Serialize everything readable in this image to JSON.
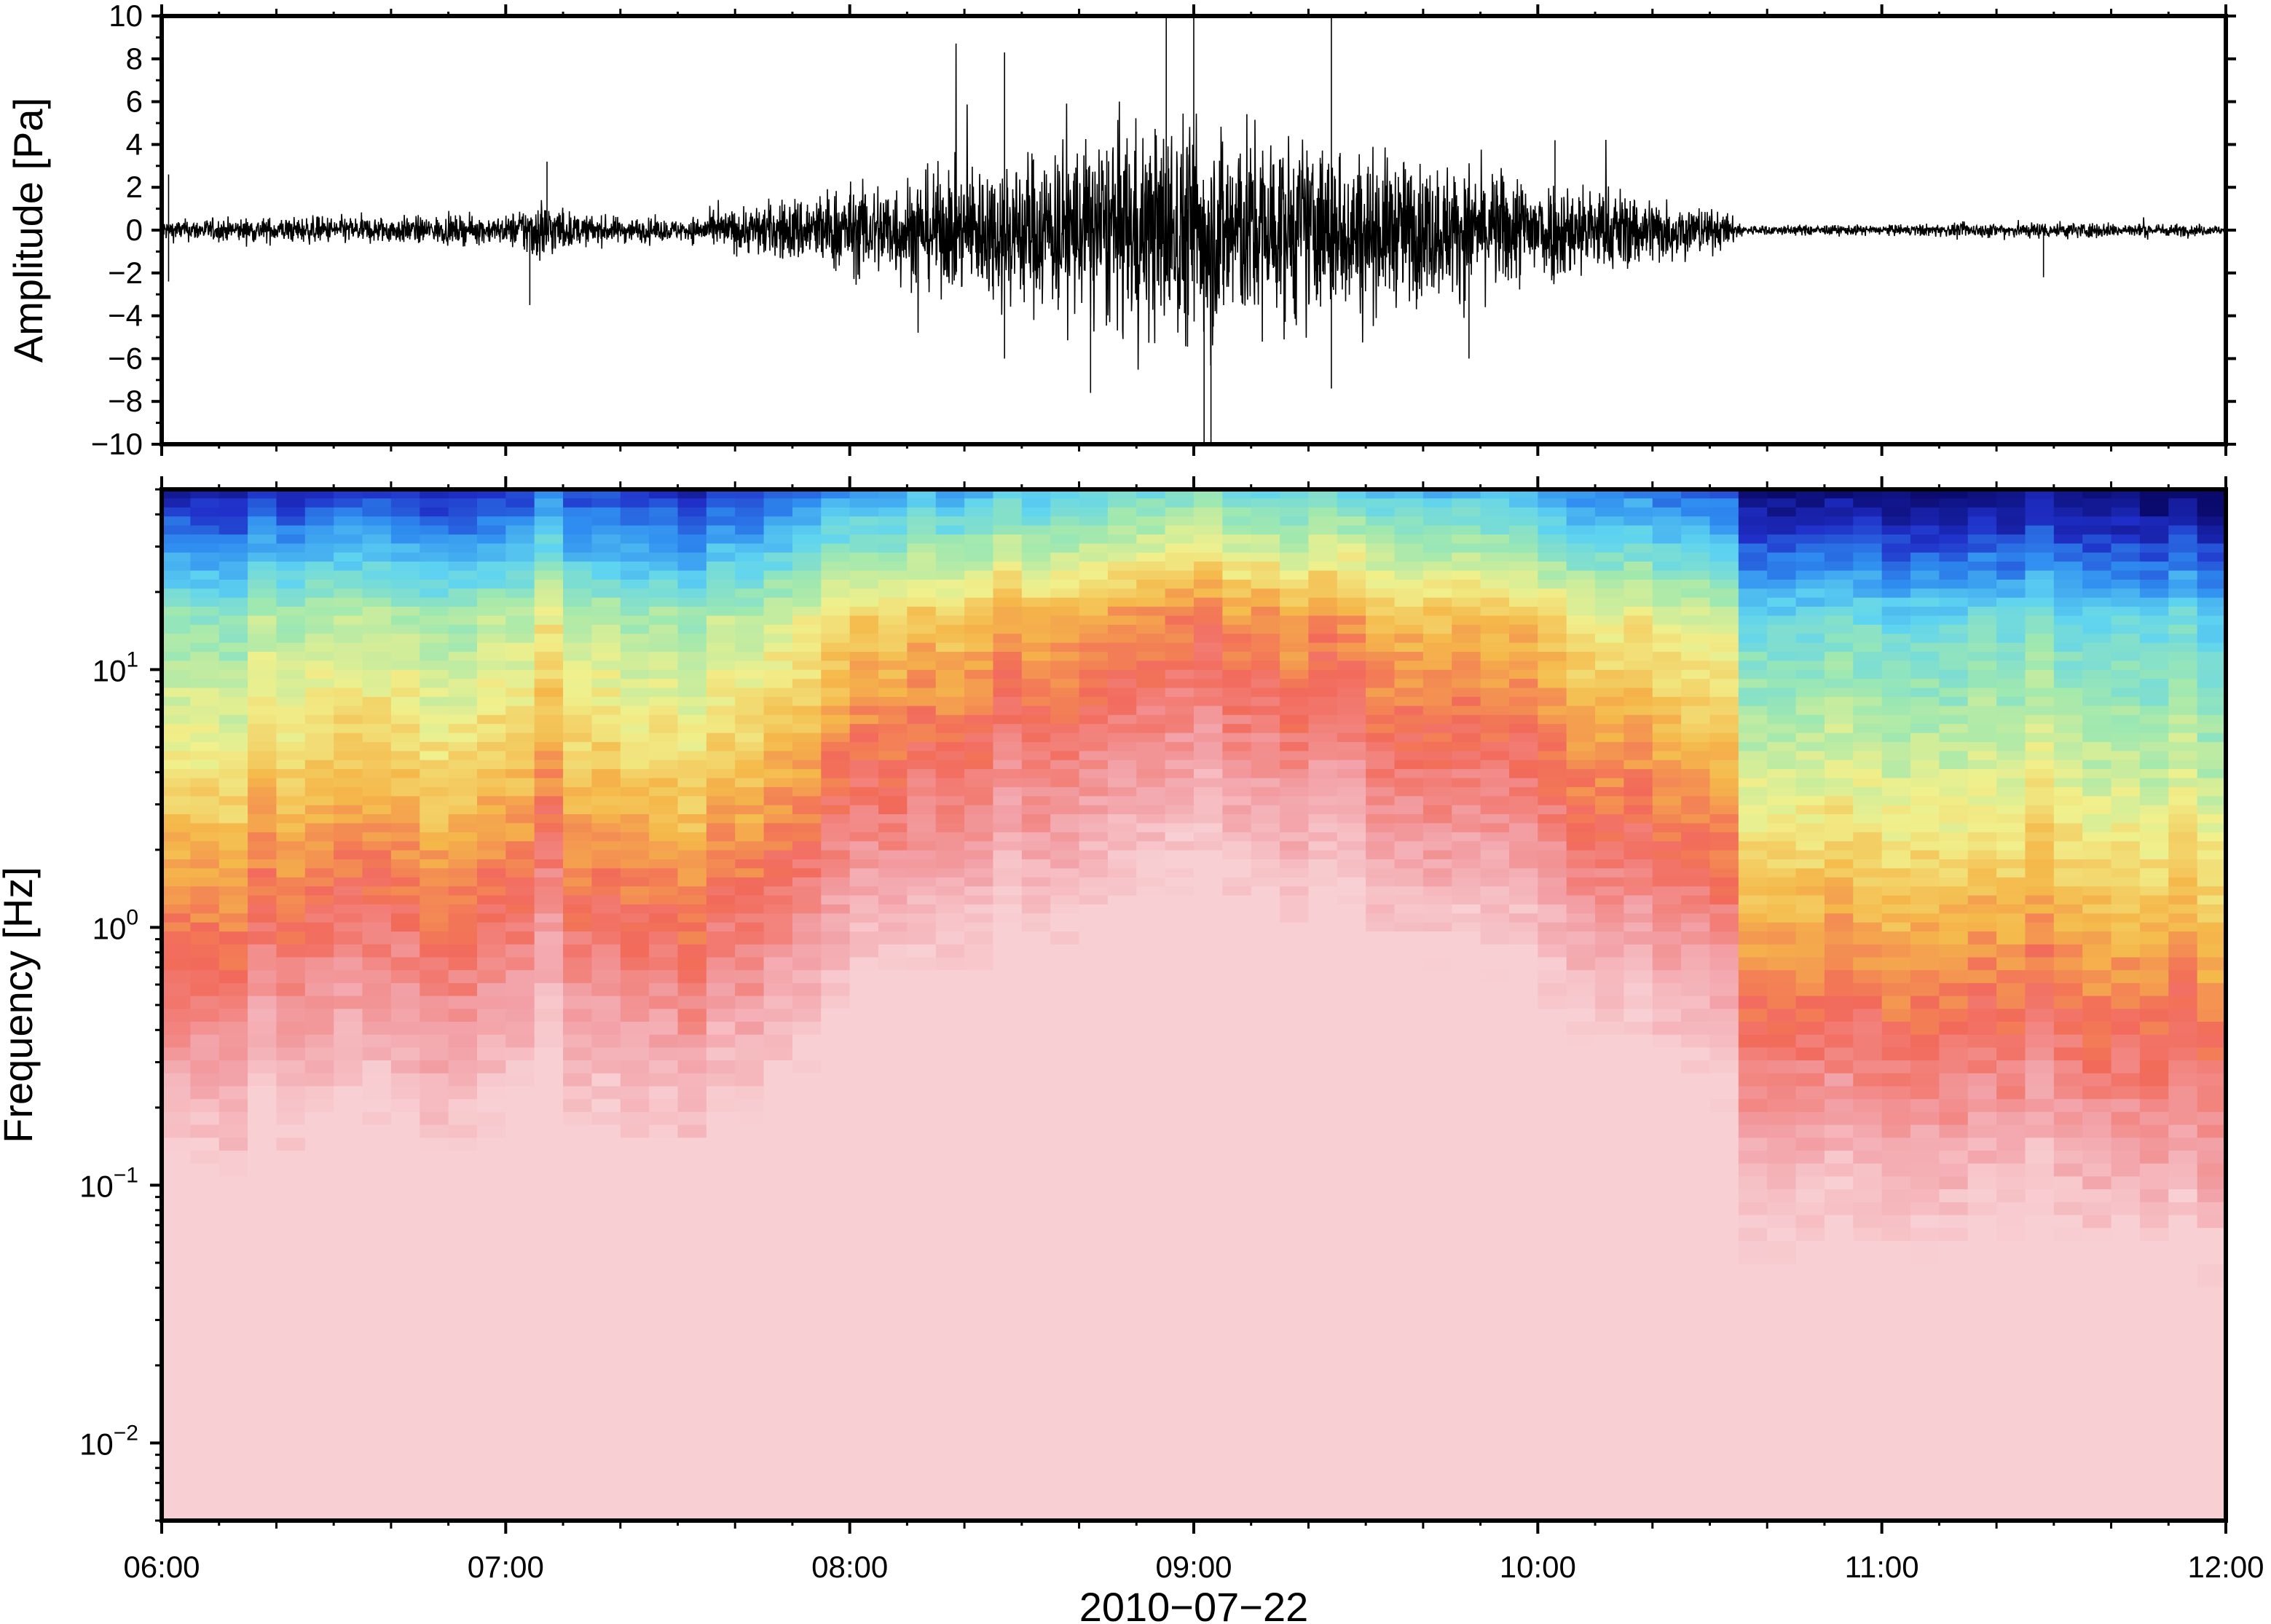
{
  "chart_data": [
    {
      "type": "line",
      "panel": "waveform",
      "ylabel": "Amplitude [Pa]",
      "ylim": [
        -10,
        10
      ],
      "yticks": [
        10,
        8,
        6,
        4,
        2,
        0,
        -2,
        -4,
        -6,
        -8,
        -10
      ],
      "ytick_labels": [
        "10",
        "8",
        "6",
        "4",
        "2",
        "0",
        "−2",
        "−4",
        "−6",
        "−8",
        "−10"
      ],
      "xlim_hours": [
        6,
        12
      ],
      "envelope": {
        "hours": [
          6.0,
          6.5,
          7.0,
          7.1,
          7.2,
          7.5,
          7.6,
          7.8,
          8.0,
          8.3,
          8.6,
          9.0,
          9.3,
          9.6,
          10.0,
          10.3,
          10.55,
          10.6,
          11.0,
          11.5,
          12.0
        ],
        "amplitude": [
          0.6,
          0.8,
          0.8,
          2.0,
          0.9,
          0.6,
          1.0,
          1.8,
          2.6,
          3.6,
          5.0,
          6.8,
          5.4,
          4.2,
          3.2,
          2.2,
          1.0,
          0.3,
          0.3,
          0.5,
          0.3
        ]
      },
      "spikes": [
        {
          "hour": 6.02,
          "value": 2.6
        },
        {
          "hour": 6.02,
          "value": -2.4
        },
        {
          "hour": 7.07,
          "value": -3.5
        },
        {
          "hour": 7.12,
          "value": 3.2
        },
        {
          "hour": 8.45,
          "value": 8.3
        },
        {
          "hour": 8.45,
          "value": -6.0
        },
        {
          "hour": 8.7,
          "value": -7.6
        },
        {
          "hour": 8.92,
          "value": 10.0
        },
        {
          "hour": 9.0,
          "value": 10.0
        },
        {
          "hour": 9.03,
          "value": -10.0
        },
        {
          "hour": 9.05,
          "value": -10.0
        },
        {
          "hour": 9.4,
          "value": 10.0
        },
        {
          "hour": 9.4,
          "value": -7.4
        },
        {
          "hour": 9.8,
          "value": -6.0
        },
        {
          "hour": 10.05,
          "value": 4.2
        },
        {
          "hour": 11.47,
          "value": -2.2
        }
      ]
    },
    {
      "type": "heatmap",
      "panel": "spectrogram",
      "ylabel": "Frequency [Hz]",
      "xlabel": "2010−07−22",
      "yscale": "log",
      "ylim": [
        0.005,
        50
      ],
      "yticks": [
        {
          "value": 10,
          "base": "10",
          "exp": "1"
        },
        {
          "value": 1,
          "base": "10",
          "exp": "0"
        },
        {
          "value": 0.1,
          "base": "10",
          "exp": "−1"
        },
        {
          "value": 0.01,
          "base": "10",
          "exp": "−2"
        }
      ],
      "x_ticks": [
        "06:00",
        "07:00",
        "08:00",
        "09:00",
        "10:00",
        "11:00",
        "12:00"
      ],
      "xlim_hours": [
        6,
        12
      ],
      "colormap": [
        "#0a0a6e",
        "#1f2fc8",
        "#2f8df0",
        "#5fd4f0",
        "#9fe8b0",
        "#f0f08c",
        "#f5b84a",
        "#f26a5a",
        "#f2a0a6",
        "#f8d0d4"
      ],
      "activity": {
        "hours": [
          6.0,
          6.5,
          7.0,
          7.1,
          7.2,
          7.5,
          7.6,
          7.8,
          8.0,
          8.3,
          8.6,
          9.0,
          9.3,
          9.6,
          10.0,
          10.3,
          10.55,
          10.6,
          11.0,
          11.5,
          12.0
        ],
        "level": [
          0.25,
          0.3,
          0.3,
          0.48,
          0.33,
          0.25,
          0.33,
          0.45,
          0.55,
          0.62,
          0.72,
          0.85,
          0.75,
          0.66,
          0.58,
          0.5,
          0.38,
          0.12,
          0.12,
          0.14,
          0.1
        ]
      }
    }
  ]
}
